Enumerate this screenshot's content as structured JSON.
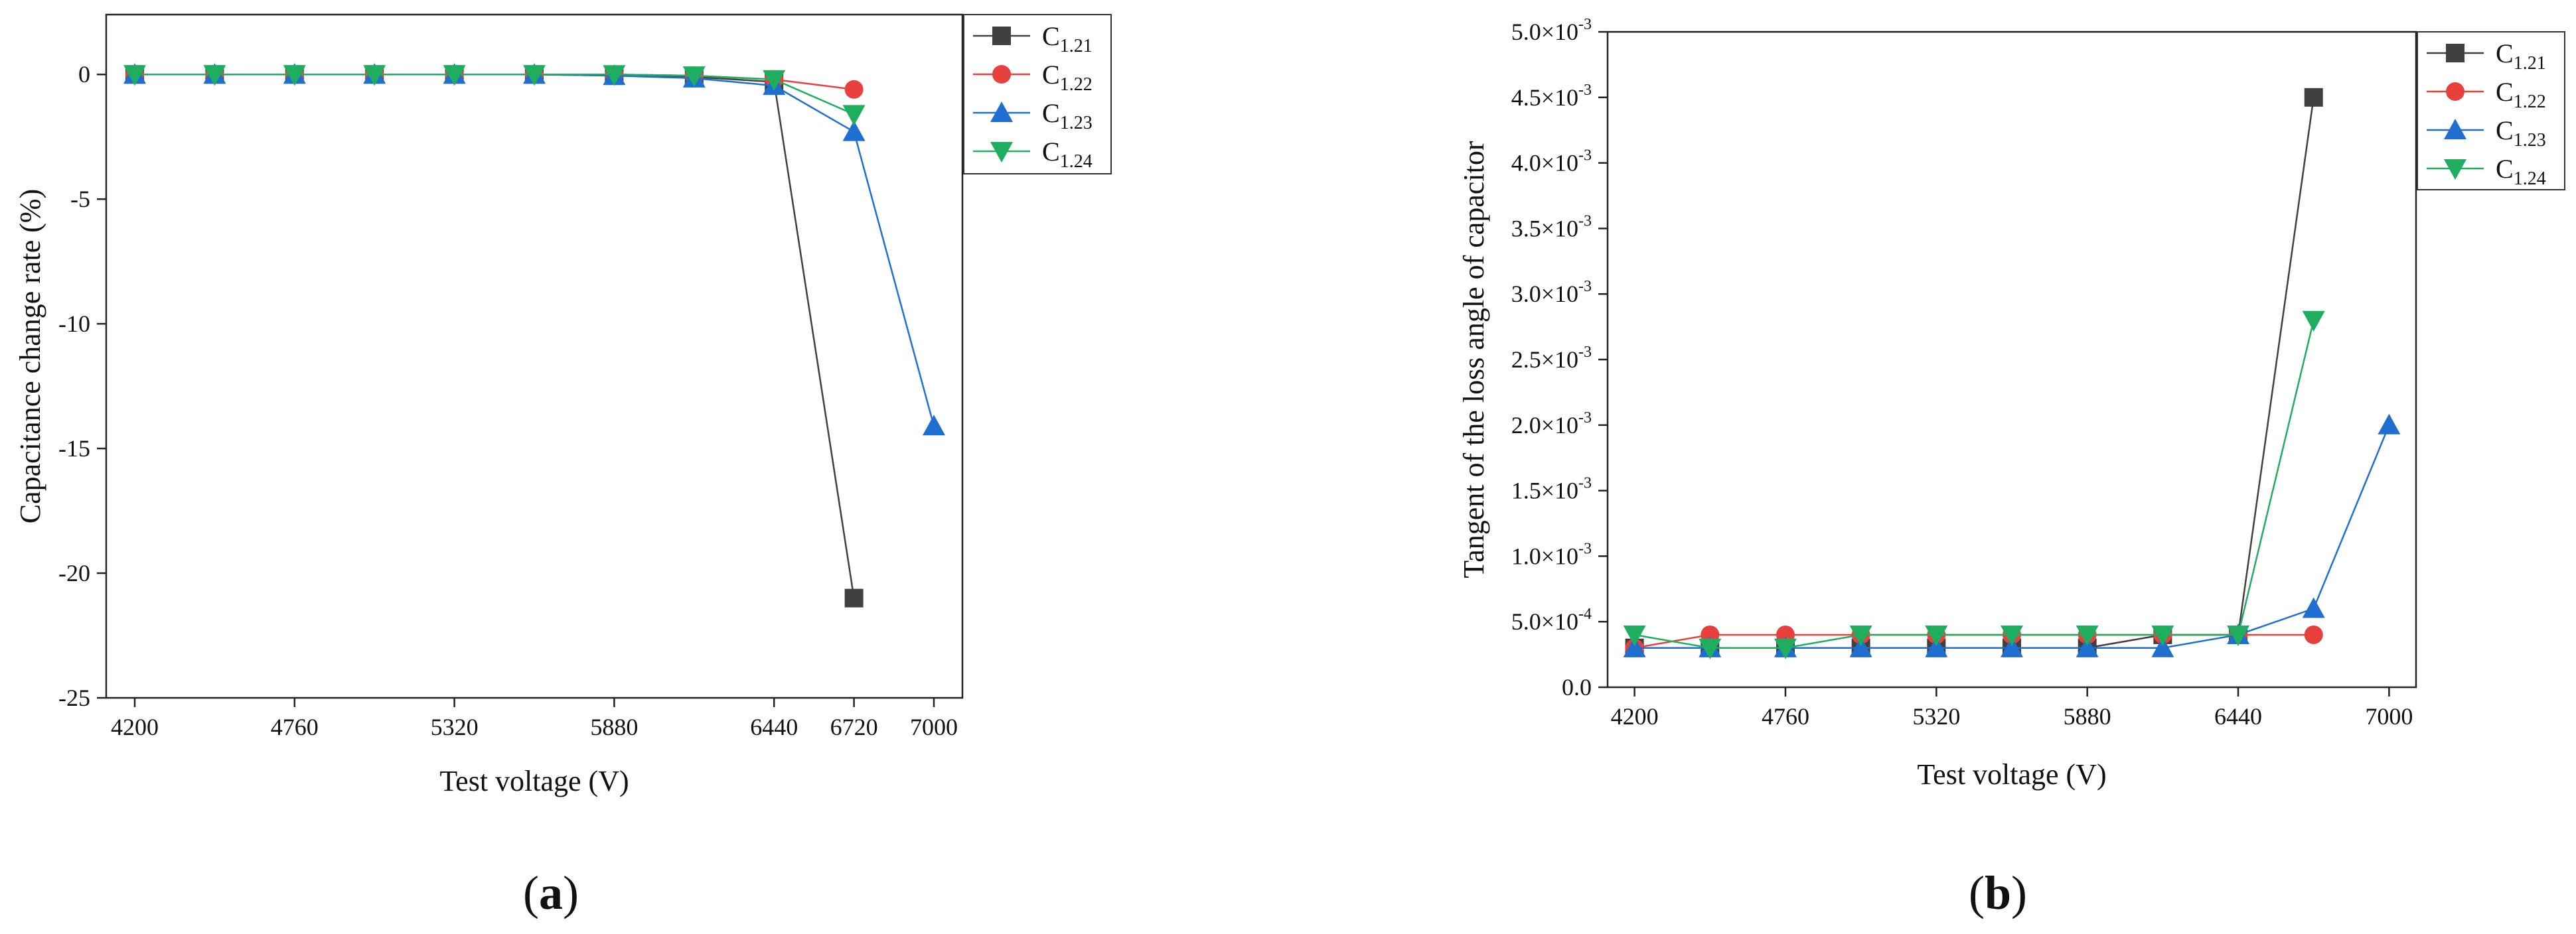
{
  "chart_data": [
    {
      "type": "line",
      "panel_label": "a",
      "title": "",
      "xlabel": "Test voltage (V)",
      "ylabel": "Capacitance change rate (%)",
      "xlim": [
        4100,
        7100
      ],
      "ylim": [
        -25,
        2.4
      ],
      "x_ticks": [
        {
          "value": 4200,
          "label": "4200"
        },
        {
          "value": 4760,
          "label": "4760"
        },
        {
          "value": 5320,
          "label": "5320"
        },
        {
          "value": 5880,
          "label": "5880"
        },
        {
          "value": 6440,
          "label": "6440"
        },
        {
          "value": 6720,
          "label": "6720"
        },
        {
          "value": 7000,
          "label": "7000"
        }
      ],
      "y_ticks": [
        {
          "value": 0,
          "label": "0"
        },
        {
          "value": -5,
          "label": "-5"
        },
        {
          "value": -10,
          "label": "-10"
        },
        {
          "value": -15,
          "label": "-15"
        },
        {
          "value": -20,
          "label": "-20"
        },
        {
          "value": -25,
          "label": "-25"
        }
      ],
      "grid": false,
      "legend_position": "top-right-outside",
      "series": [
        {
          "name": "C",
          "sub": "1.21",
          "marker": "square",
          "color": "#404040",
          "x": [
            4200,
            4480,
            4760,
            5040,
            5320,
            5600,
            5880,
            6160,
            6440,
            6720
          ],
          "y": [
            0,
            0,
            0,
            0,
            0,
            0,
            -0.05,
            -0.1,
            -0.3,
            -21.0
          ]
        },
        {
          "name": "C",
          "sub": "1.22",
          "marker": "circle",
          "color": "#e8403c",
          "x": [
            4200,
            4480,
            4760,
            5040,
            5320,
            5600,
            5880,
            6160,
            6440,
            6720
          ],
          "y": [
            0,
            0,
            0,
            0,
            0,
            0,
            0,
            -0.05,
            -0.2,
            -0.6
          ]
        },
        {
          "name": "C",
          "sub": "1.23",
          "marker": "triangle-up",
          "color": "#1f6fd1",
          "x": [
            4200,
            4480,
            4760,
            5040,
            5320,
            5600,
            5880,
            6160,
            6440,
            6720,
            7000
          ],
          "y": [
            0,
            0,
            0,
            0,
            0,
            0,
            -0.05,
            -0.15,
            -0.45,
            -2.3,
            -14.1
          ]
        },
        {
          "name": "C",
          "sub": "1.24",
          "marker": "triangle-down",
          "color": "#1fae5f",
          "x": [
            4200,
            4480,
            4760,
            5040,
            5320,
            5600,
            5880,
            6160,
            6440,
            6720
          ],
          "y": [
            0,
            0,
            0,
            0,
            0,
            0,
            0,
            -0.05,
            -0.2,
            -1.6
          ]
        }
      ]
    },
    {
      "type": "line",
      "panel_label": "b",
      "title": "",
      "xlabel": "Test voltage (V)",
      "ylabel": "Tangent of the loss angle of capacitor",
      "xlim": [
        4100,
        7100
      ],
      "ylim": [
        0,
        0.005
      ],
      "x_ticks": [
        {
          "value": 4200,
          "label": "4200"
        },
        {
          "value": 4760,
          "label": "4760"
        },
        {
          "value": 5320,
          "label": "5320"
        },
        {
          "value": 5880,
          "label": "5880"
        },
        {
          "value": 6440,
          "label": "6440"
        },
        {
          "value": 7000,
          "label": "7000"
        }
      ],
      "y_ticks": [
        {
          "value": 0,
          "label": "0.0"
        },
        {
          "value": 0.0005,
          "mantissa": "5.0",
          "exponent": "-4"
        },
        {
          "value": 0.001,
          "mantissa": "1.0",
          "exponent": "-3"
        },
        {
          "value": 0.0015,
          "mantissa": "1.5",
          "exponent": "-3"
        },
        {
          "value": 0.002,
          "mantissa": "2.0",
          "exponent": "-3"
        },
        {
          "value": 0.0025,
          "mantissa": "2.5",
          "exponent": "-3"
        },
        {
          "value": 0.003,
          "mantissa": "3.0",
          "exponent": "-3"
        },
        {
          "value": 0.0035,
          "mantissa": "3.5",
          "exponent": "-3"
        },
        {
          "value": 0.004,
          "mantissa": "4.0",
          "exponent": "-3"
        },
        {
          "value": 0.0045,
          "mantissa": "4.5",
          "exponent": "-3"
        },
        {
          "value": 0.005,
          "mantissa": "5.0",
          "exponent": "-3"
        }
      ],
      "grid": false,
      "legend_position": "top-right-outside",
      "series": [
        {
          "name": "C",
          "sub": "1.21",
          "marker": "square",
          "color": "#404040",
          "x": [
            4200,
            4480,
            4760,
            5040,
            5320,
            5600,
            5880,
            6160,
            6440,
            6720
          ],
          "y": [
            0.0003,
            0.0003,
            0.0003,
            0.0003,
            0.0003,
            0.0003,
            0.0003,
            0.0004,
            0.0004,
            0.0045
          ]
        },
        {
          "name": "C",
          "sub": "1.22",
          "marker": "circle",
          "color": "#e8403c",
          "x": [
            4200,
            4480,
            4760,
            5040,
            5320,
            5600,
            5880,
            6160,
            6440,
            6720
          ],
          "y": [
            0.0003,
            0.0004,
            0.0004,
            0.0004,
            0.0004,
            0.0004,
            0.0004,
            0.0004,
            0.0004,
            0.0004
          ]
        },
        {
          "name": "C",
          "sub": "1.23",
          "marker": "triangle-up",
          "color": "#1f6fd1",
          "x": [
            4200,
            4480,
            4760,
            5040,
            5320,
            5600,
            5880,
            6160,
            6440,
            6720,
            7000
          ],
          "y": [
            0.0003,
            0.0003,
            0.0003,
            0.0003,
            0.0003,
            0.0003,
            0.0003,
            0.0003,
            0.0004,
            0.0006,
            0.002
          ]
        },
        {
          "name": "C",
          "sub": "1.24",
          "marker": "triangle-down",
          "color": "#1fae5f",
          "x": [
            4200,
            4480,
            4760,
            5040,
            5320,
            5600,
            5880,
            6160,
            6440,
            6720
          ],
          "y": [
            0.0004,
            0.0003,
            0.0003,
            0.0004,
            0.0004,
            0.0004,
            0.0004,
            0.0004,
            0.0004,
            0.0028
          ]
        }
      ]
    }
  ]
}
